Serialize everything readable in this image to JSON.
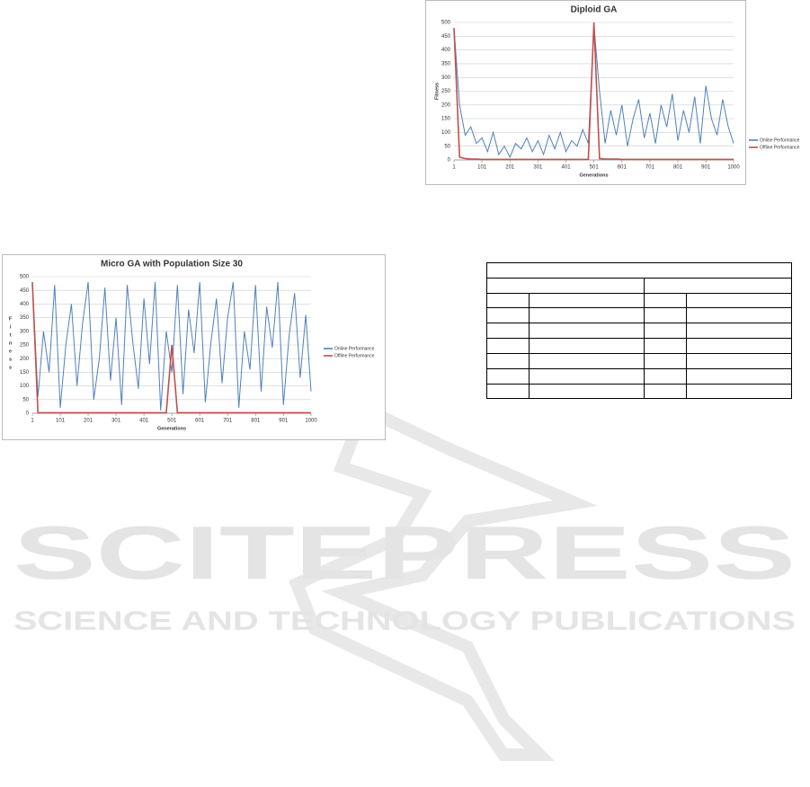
{
  "chart_data": [
    {
      "type": "line",
      "title": "Diploid GA",
      "xlabel": "Generations",
      "ylabel": "Fitness",
      "x": [
        1,
        21,
        41,
        61,
        81,
        101,
        121,
        141,
        161,
        181,
        201,
        221,
        241,
        261,
        281,
        301,
        321,
        341,
        361,
        381,
        401,
        421,
        441,
        461,
        481,
        501,
        521,
        541,
        561,
        581,
        601,
        621,
        641,
        661,
        681,
        701,
        721,
        741,
        761,
        781,
        801,
        821,
        841,
        861,
        881,
        901,
        921,
        941,
        961,
        981,
        1000
      ],
      "series": [
        {
          "name": "Online Performance",
          "color": "#4f81bd",
          "values": [
            480,
            200,
            90,
            120,
            60,
            80,
            30,
            100,
            20,
            50,
            10,
            60,
            40,
            80,
            30,
            70,
            20,
            90,
            40,
            100,
            30,
            70,
            50,
            110,
            60,
            490,
            250,
            60,
            180,
            90,
            200,
            50,
            150,
            220,
            80,
            170,
            60,
            200,
            120,
            240,
            70,
            180,
            100,
            230,
            60,
            270,
            150,
            90,
            220,
            120,
            60
          ]
        },
        {
          "name": "Offline Performance",
          "color": "#c0504d",
          "values": [
            480,
            10,
            5,
            3,
            3,
            2,
            2,
            2,
            2,
            2,
            2,
            2,
            2,
            2,
            2,
            2,
            2,
            2,
            2,
            2,
            2,
            2,
            2,
            2,
            2,
            500,
            5,
            3,
            3,
            3,
            2,
            2,
            2,
            2,
            2,
            2,
            2,
            2,
            2,
            2,
            2,
            2,
            2,
            2,
            2,
            2,
            2,
            2,
            2,
            2,
            2
          ]
        }
      ],
      "xlim": [
        1,
        1000
      ],
      "xticks": [
        1,
        101,
        201,
        301,
        401,
        501,
        601,
        701,
        801,
        901,
        1000
      ],
      "ylim": [
        0,
        500
      ],
      "yticks": [
        0,
        50,
        100,
        150,
        200,
        250,
        300,
        350,
        400,
        450,
        500
      ],
      "grid": true,
      "legend": "right"
    },
    {
      "type": "line",
      "title": "Micro GA with Population Size 30",
      "xlabel": "Generations",
      "ylabel": "Fitness",
      "x": [
        1,
        21,
        41,
        61,
        81,
        101,
        121,
        141,
        161,
        181,
        201,
        221,
        241,
        261,
        281,
        301,
        321,
        341,
        361,
        381,
        401,
        421,
        441,
        461,
        481,
        501,
        521,
        541,
        561,
        581,
        601,
        621,
        641,
        661,
        681,
        701,
        721,
        741,
        761,
        781,
        801,
        821,
        841,
        861,
        881,
        901,
        921,
        941,
        961,
        981,
        1000
      ],
      "series": [
        {
          "name": "Online Performance",
          "color": "#4f81bd",
          "values": [
            480,
            60,
            300,
            150,
            470,
            20,
            250,
            400,
            100,
            330,
            480,
            50,
            200,
            460,
            120,
            350,
            30,
            470,
            260,
            90,
            420,
            180,
            480,
            10,
            300,
            150,
            470,
            70,
            380,
            220,
            480,
            40,
            260,
            420,
            110,
            350,
            480,
            20,
            300,
            160,
            470,
            80,
            390,
            240,
            480,
            30,
            280,
            440,
            130,
            360,
            80
          ]
        },
        {
          "name": "Offline Performance",
          "color": "#c0504d",
          "values": [
            480,
            2,
            2,
            2,
            2,
            2,
            2,
            2,
            2,
            2,
            2,
            2,
            2,
            2,
            2,
            2,
            2,
            2,
            2,
            2,
            2,
            2,
            2,
            2,
            2,
            250,
            2,
            2,
            2,
            2,
            2,
            2,
            2,
            2,
            2,
            2,
            2,
            2,
            2,
            2,
            2,
            2,
            2,
            2,
            2,
            2,
            2,
            2,
            2,
            2,
            2
          ]
        }
      ],
      "xlim": [
        1,
        1000
      ],
      "xticks": [
        1,
        101,
        201,
        301,
        401,
        501,
        601,
        701,
        801,
        901,
        1000
      ],
      "ylim": [
        0,
        500
      ],
      "yticks": [
        0,
        50,
        100,
        150,
        200,
        250,
        300,
        350,
        400,
        450,
        500
      ],
      "grid": true,
      "legend": "right"
    }
  ],
  "watermark": {
    "title": "SCITEPRESS",
    "subtitle": "SCIENCE AND TECHNOLOGY PUBLICATIONS"
  }
}
